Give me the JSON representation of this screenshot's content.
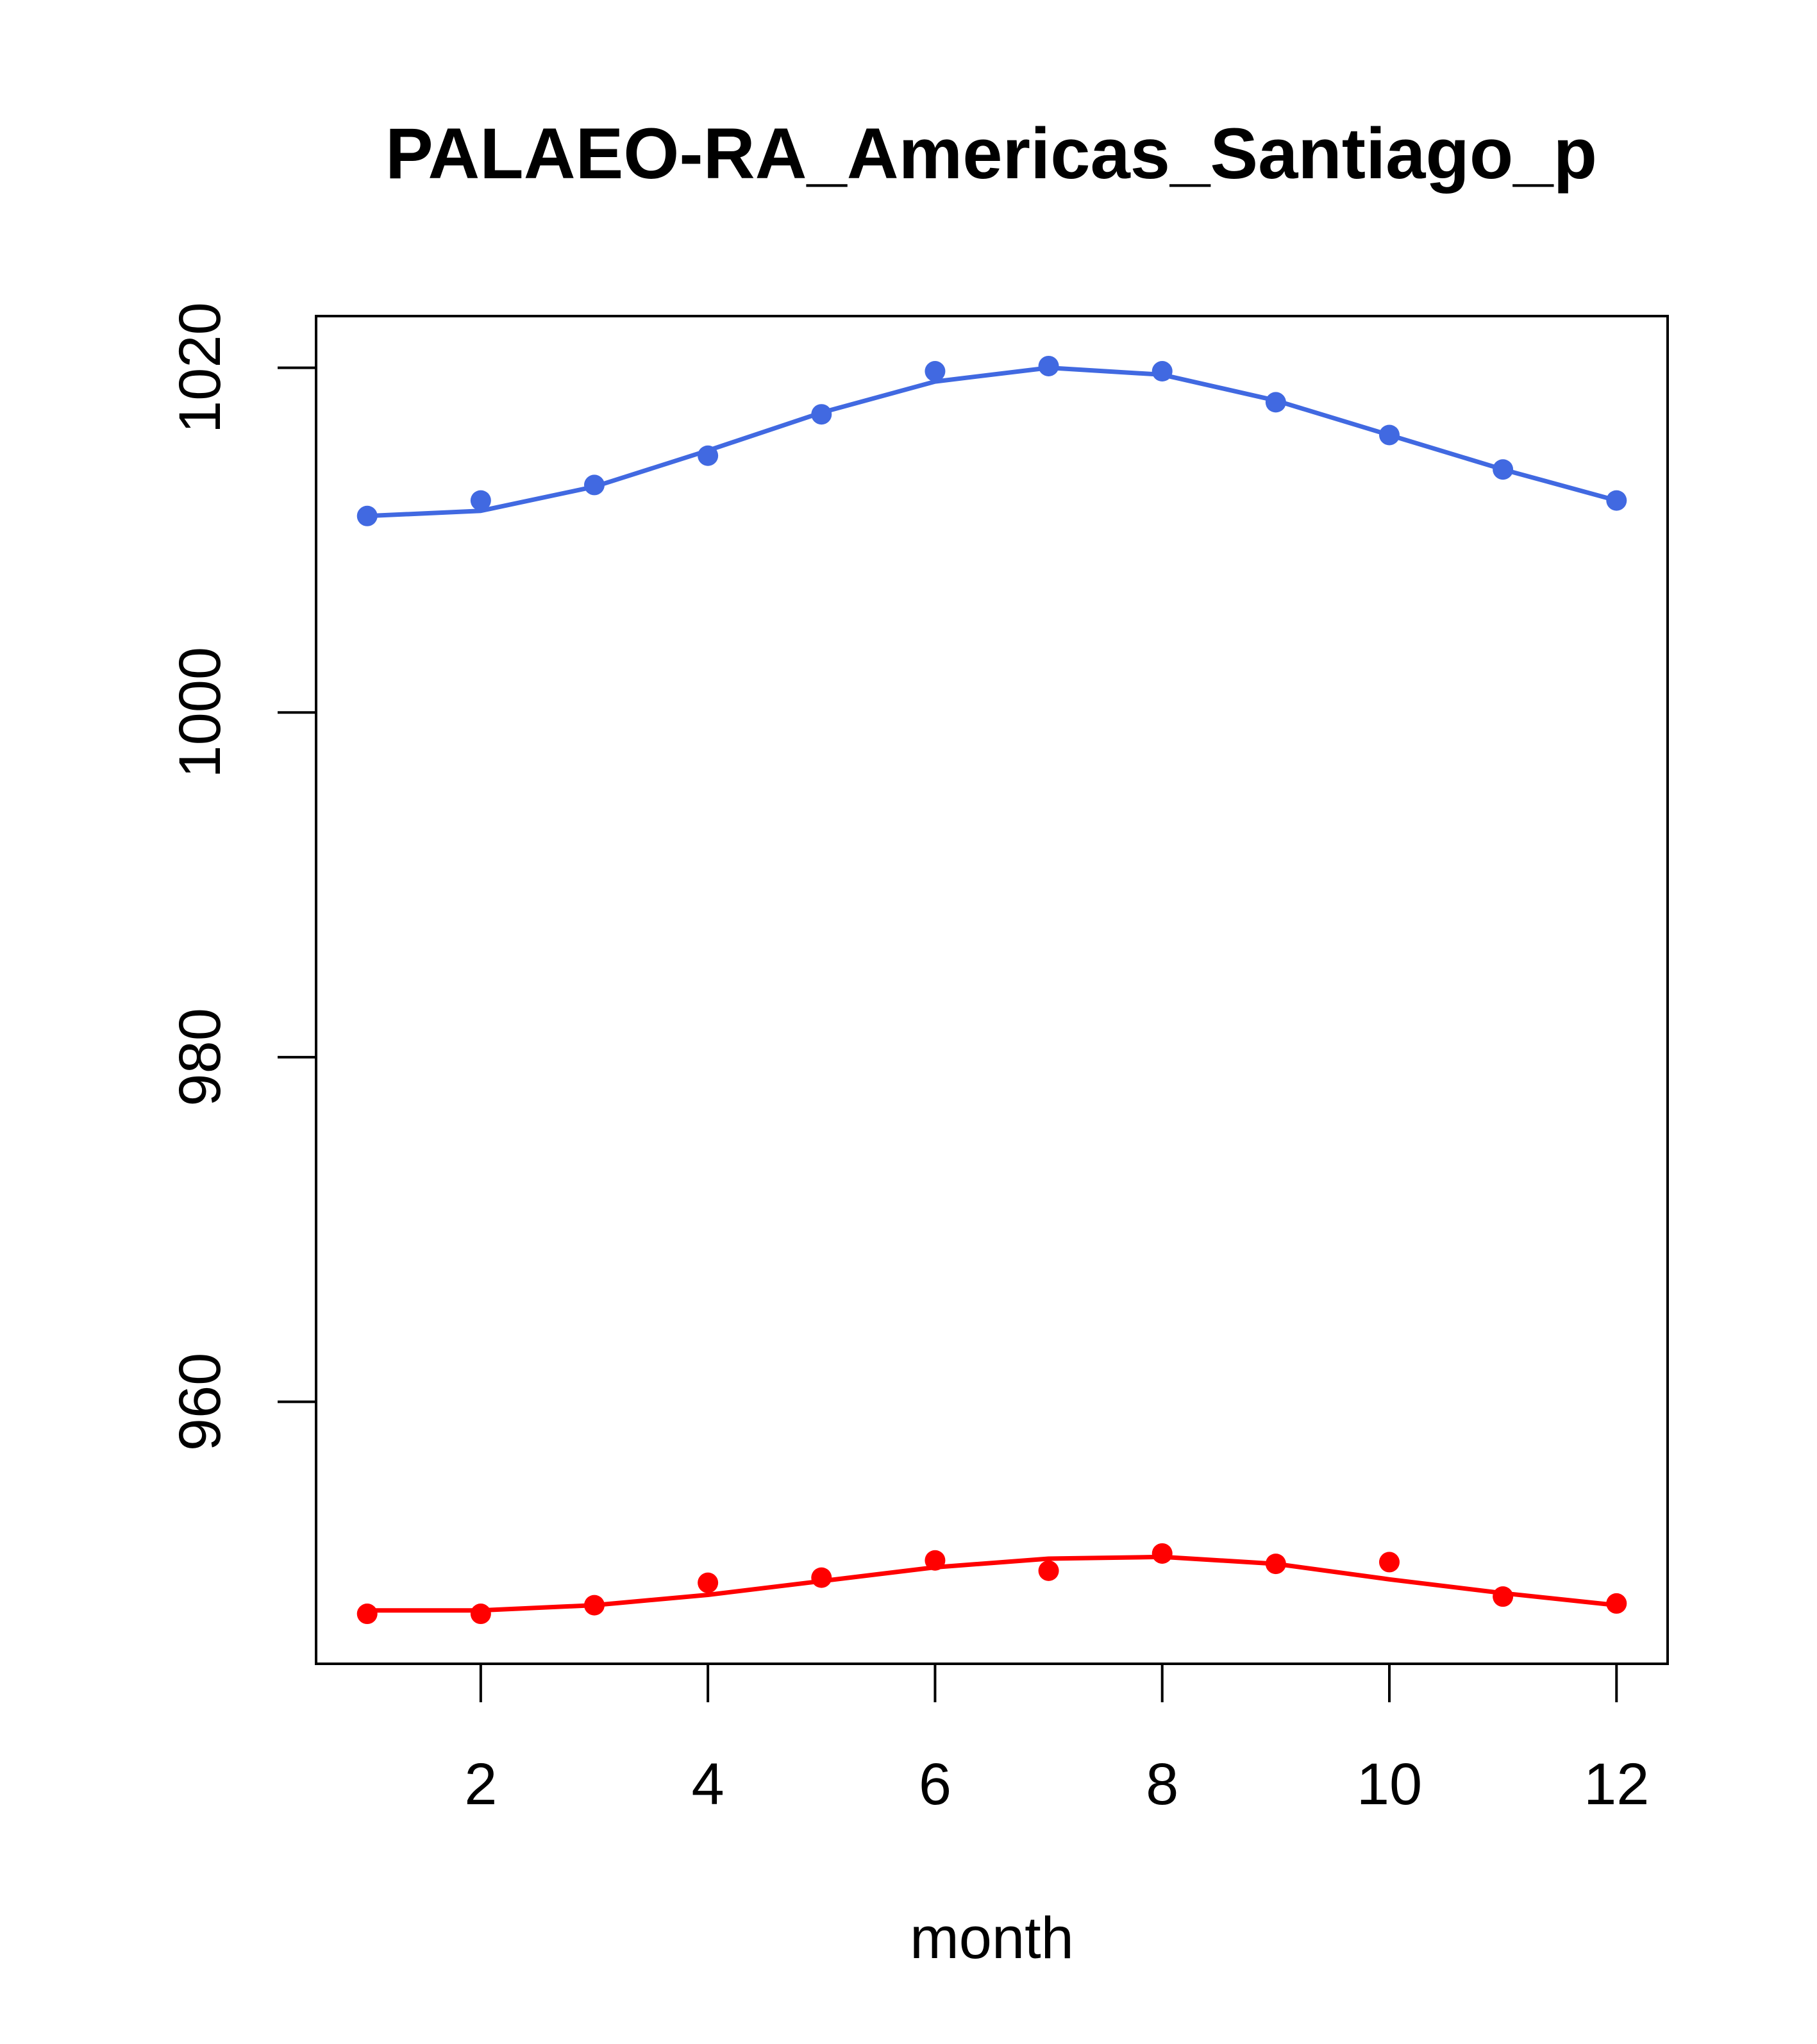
{
  "chart_data": {
    "type": "line",
    "title": "PALAEO-RA_Americas_Santiago_p",
    "xlabel": "month",
    "ylabel": "",
    "xlim": [
      0.55,
      12.45
    ],
    "ylim": [
      944.8,
      1023.0
    ],
    "x_ticks": [
      2,
      4,
      6,
      8,
      10,
      12
    ],
    "y_ticks": [
      960,
      980,
      1000,
      1020
    ],
    "grid": false,
    "legend": "none",
    "series": [
      {
        "color": "#4169E1",
        "x": [
          1,
          2,
          3,
          4,
          5,
          6,
          7,
          8,
          9,
          10,
          11,
          12
        ],
        "points": [
          1011.4,
          1012.3,
          1013.2,
          1014.9,
          1017.3,
          1019.8,
          1020.1,
          1019.8,
          1018.0,
          1016.1,
          1014.1,
          1012.3
        ],
        "line": [
          1011.4,
          1011.7,
          1013.1,
          1015.2,
          1017.4,
          1019.2,
          1020.0,
          1019.6,
          1018.1,
          1016.1,
          1014.1,
          1012.3
        ]
      },
      {
        "color": "#FF0000",
        "x": [
          1,
          2,
          3,
          4,
          5,
          6,
          7,
          8,
          9,
          10,
          11,
          12
        ],
        "points": [
          947.7,
          947.7,
          948.2,
          949.5,
          949.8,
          950.8,
          950.2,
          951.2,
          950.6,
          950.7,
          948.7,
          948.3
        ],
        "line": [
          947.9,
          947.9,
          948.2,
          948.8,
          949.6,
          950.4,
          950.9,
          951.0,
          950.6,
          949.7,
          948.9,
          948.2
        ]
      }
    ]
  }
}
